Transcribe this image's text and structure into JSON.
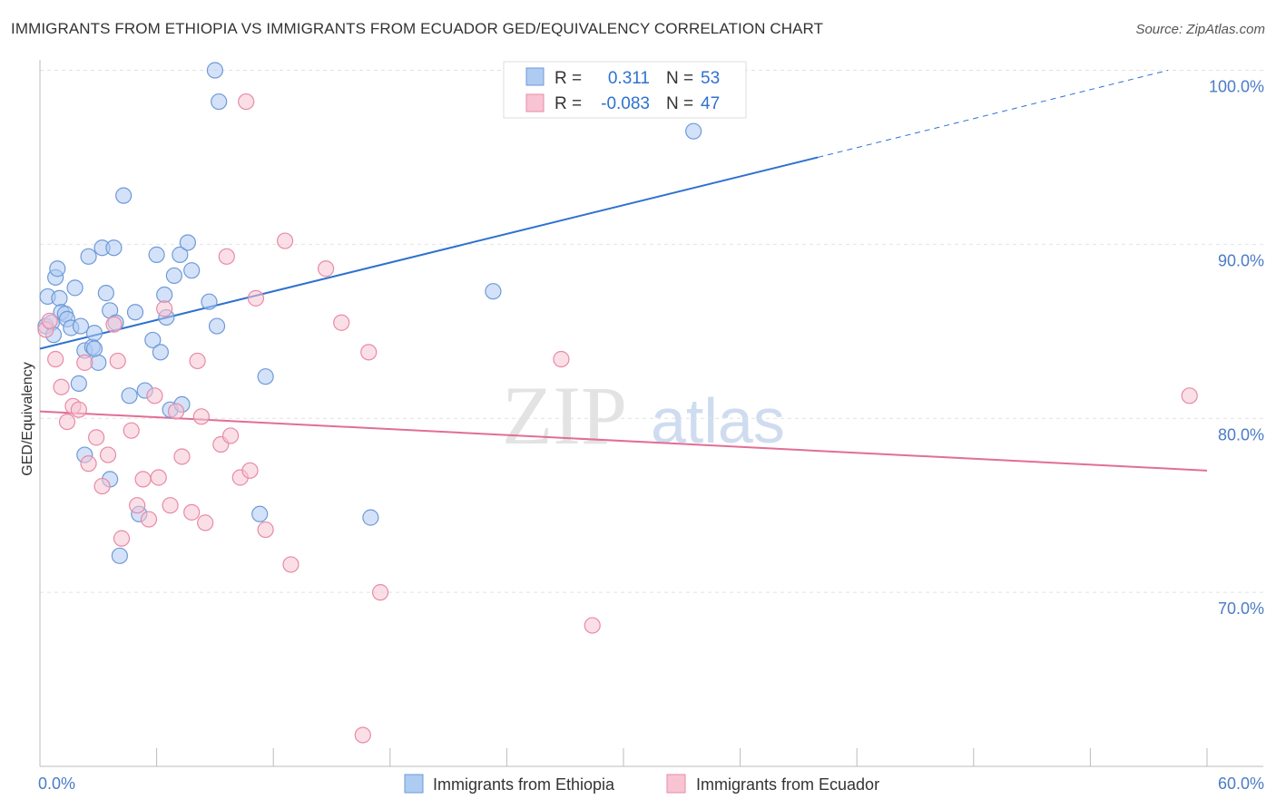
{
  "chart_data": {
    "type": "scatter",
    "title": "IMMIGRANTS FROM ETHIOPIA VS IMMIGRANTS FROM ECUADOR GED/EQUIVALENCY CORRELATION CHART",
    "source": "Source: ZipAtlas.com",
    "xlabel": "",
    "ylabel": "GED/Equivalency",
    "xlim": [
      0,
      60
    ],
    "ylim": [
      60,
      100.6
    ],
    "x_tick_labels": [
      {
        "value": 0,
        "label": "0.0%"
      },
      {
        "value": 60,
        "label": "60.0%"
      }
    ],
    "y_tick_labels": [
      {
        "value": 70,
        "label": "70.0%"
      },
      {
        "value": 80,
        "label": "80.0%"
      },
      {
        "value": 90,
        "label": "90.0%"
      },
      {
        "value": 100,
        "label": "100.0%"
      }
    ],
    "watermark": {
      "zip": "ZIP",
      "atlas": "atlas"
    },
    "stats_legend": [
      {
        "r_label": "R =",
        "r_value": "0.311",
        "n_label": "N =",
        "n_value": "53"
      },
      {
        "r_label": "R =",
        "r_value": "-0.083",
        "n_label": "N =",
        "n_value": "47"
      }
    ],
    "series": [
      {
        "name": "Immigrants from Ethiopia",
        "fill": "#aecbf2",
        "stroke": "#6f9ad8",
        "trend_color": "#2e72cf",
        "trend": {
          "x0": 0,
          "y0": 84.0,
          "x1": 40,
          "y1": 95.0,
          "dashed_to_x": 58,
          "dashed_to_y": 100.0
        },
        "points": [
          [
            0.3,
            85.3
          ],
          [
            0.4,
            87.0
          ],
          [
            0.6,
            85.5
          ],
          [
            0.7,
            84.8
          ],
          [
            0.8,
            88.1
          ],
          [
            0.9,
            88.6
          ],
          [
            1.0,
            86.9
          ],
          [
            1.1,
            86.1
          ],
          [
            1.3,
            86.0
          ],
          [
            1.4,
            85.7
          ],
          [
            1.6,
            85.2
          ],
          [
            1.8,
            87.5
          ],
          [
            2.0,
            82.0
          ],
          [
            2.1,
            85.3
          ],
          [
            2.3,
            83.9
          ],
          [
            2.5,
            89.3
          ],
          [
            2.7,
            84.1
          ],
          [
            2.8,
            84.9
          ],
          [
            3.0,
            83.2
          ],
          [
            3.2,
            89.8
          ],
          [
            3.4,
            87.2
          ],
          [
            3.6,
            86.2
          ],
          [
            3.8,
            89.8
          ],
          [
            3.9,
            85.5
          ],
          [
            4.3,
            92.8
          ],
          [
            4.6,
            81.3
          ],
          [
            4.9,
            86.1
          ],
          [
            5.4,
            81.6
          ],
          [
            5.8,
            84.5
          ],
          [
            6.0,
            89.4
          ],
          [
            6.2,
            83.8
          ],
          [
            6.4,
            87.1
          ],
          [
            6.5,
            85.8
          ],
          [
            6.9,
            88.2
          ],
          [
            7.2,
            89.4
          ],
          [
            7.6,
            90.1
          ],
          [
            7.8,
            88.5
          ],
          [
            8.7,
            86.7
          ],
          [
            9.0,
            100.0
          ],
          [
            9.2,
            98.2
          ],
          [
            9.1,
            85.3
          ],
          [
            11.3,
            74.5
          ],
          [
            11.6,
            82.4
          ],
          [
            6.7,
            80.5
          ],
          [
            7.3,
            80.8
          ],
          [
            2.3,
            77.9
          ],
          [
            3.6,
            76.5
          ],
          [
            4.1,
            72.1
          ],
          [
            5.1,
            74.5
          ],
          [
            17.0,
            74.3
          ],
          [
            23.3,
            87.3
          ],
          [
            33.6,
            96.5
          ],
          [
            2.8,
            84.0
          ]
        ]
      },
      {
        "name": "Immigrants from Ecuador",
        "fill": "#f8c4d3",
        "stroke": "#e88aa6",
        "trend_color": "#e26e95",
        "trend": {
          "x0": 0,
          "y0": 80.4,
          "x1": 60,
          "y1": 77.0
        },
        "points": [
          [
            0.3,
            85.1
          ],
          [
            0.5,
            85.6
          ],
          [
            0.8,
            83.4
          ],
          [
            1.1,
            81.8
          ],
          [
            1.4,
            79.8
          ],
          [
            1.7,
            80.7
          ],
          [
            2.0,
            80.5
          ],
          [
            2.3,
            83.2
          ],
          [
            2.5,
            77.4
          ],
          [
            2.9,
            78.9
          ],
          [
            3.2,
            76.1
          ],
          [
            3.5,
            77.9
          ],
          [
            3.8,
            85.4
          ],
          [
            4.0,
            83.3
          ],
          [
            4.2,
            73.1
          ],
          [
            4.7,
            79.3
          ],
          [
            5.0,
            75.0
          ],
          [
            5.3,
            76.5
          ],
          [
            5.6,
            74.2
          ],
          [
            5.9,
            81.3
          ],
          [
            6.1,
            76.6
          ],
          [
            6.4,
            86.3
          ],
          [
            6.7,
            75.0
          ],
          [
            7.0,
            80.4
          ],
          [
            7.3,
            77.8
          ],
          [
            7.8,
            74.6
          ],
          [
            8.1,
            83.3
          ],
          [
            8.3,
            80.1
          ],
          [
            8.5,
            74.0
          ],
          [
            9.3,
            78.5
          ],
          [
            9.6,
            89.3
          ],
          [
            9.8,
            79.0
          ],
          [
            10.3,
            76.6
          ],
          [
            10.8,
            77.0
          ],
          [
            11.1,
            86.9
          ],
          [
            11.6,
            73.6
          ],
          [
            12.6,
            90.2
          ],
          [
            12.9,
            71.6
          ],
          [
            14.7,
            88.6
          ],
          [
            15.5,
            85.5
          ],
          [
            16.6,
            61.8
          ],
          [
            16.9,
            83.8
          ],
          [
            17.5,
            70.0
          ],
          [
            26.8,
            83.4
          ],
          [
            28.4,
            68.1
          ],
          [
            59.1,
            81.3
          ],
          [
            10.6,
            98.2
          ]
        ]
      }
    ]
  }
}
